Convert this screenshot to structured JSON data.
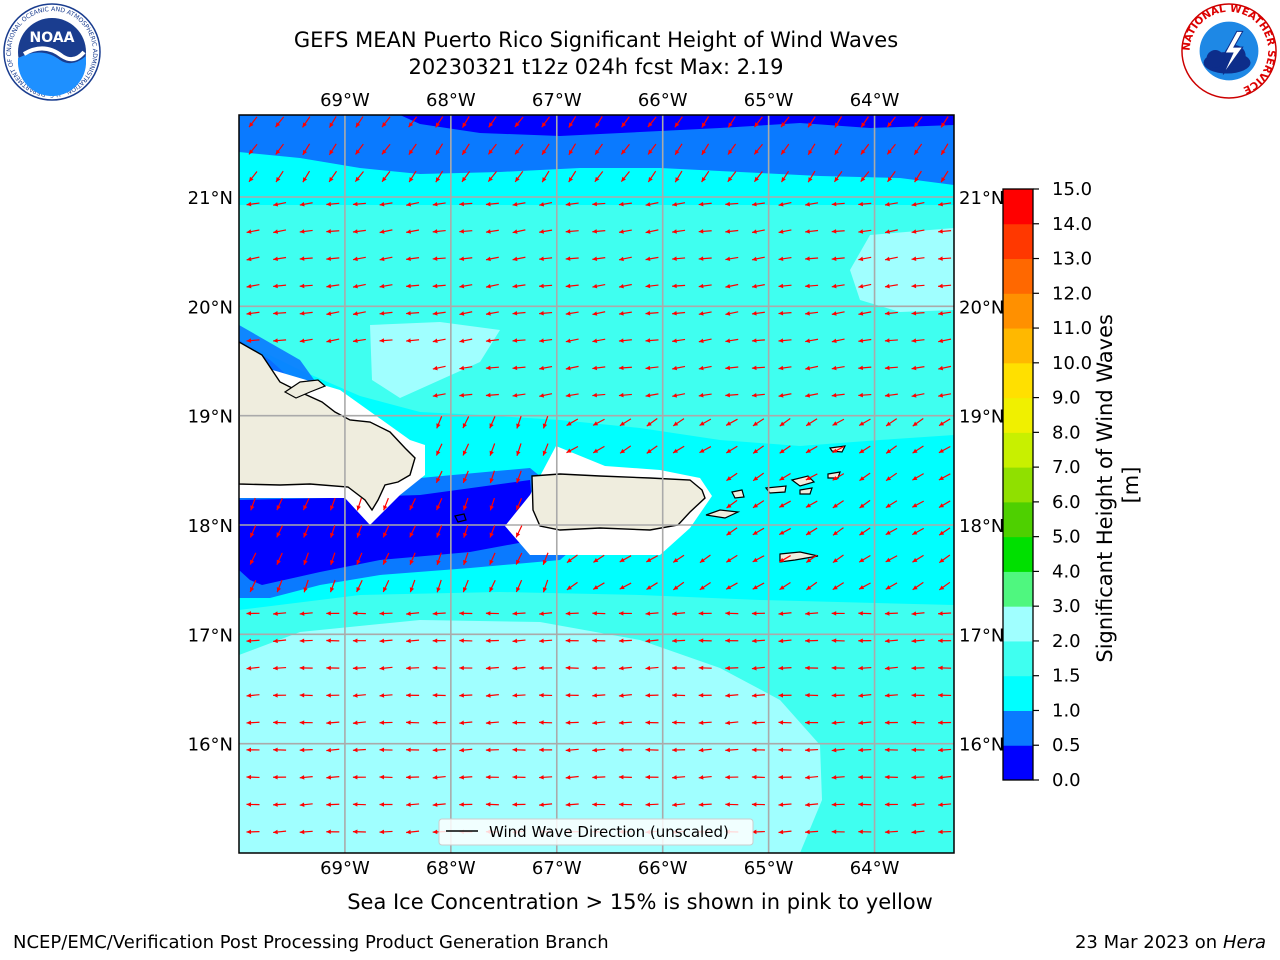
{
  "title": {
    "line1": "GEFS MEAN Puerto Rico Significant Height of Wind Waves",
    "line2": "20230321 t12z 024h fcst   Max: 2.19"
  },
  "map": {
    "lon_range": [
      -70.0,
      -63.25
    ],
    "lat_range": [
      15.0,
      21.75
    ],
    "lon_ticks": [
      {
        "value": -69,
        "label": "69°W"
      },
      {
        "value": -68,
        "label": "68°W"
      },
      {
        "value": -67,
        "label": "67°W"
      },
      {
        "value": -66,
        "label": "66°W"
      },
      {
        "value": -65,
        "label": "65°W"
      },
      {
        "value": -64,
        "label": "64°W"
      }
    ],
    "lat_ticks": [
      {
        "value": 21,
        "label": "21°N"
      },
      {
        "value": 20,
        "label": "20°N"
      },
      {
        "value": 19,
        "label": "19°N"
      },
      {
        "value": 18,
        "label": "18°N"
      },
      {
        "value": 17,
        "label": "17°N"
      },
      {
        "value": 16,
        "label": "16°N"
      }
    ],
    "gridlines": true,
    "legend_label": "Wind Wave Direction (unscaled)",
    "legend_placement": "bottom-center",
    "arrow_color": "#ff0000",
    "land_color": "#efedde",
    "ocean_color": "#00ffff"
  },
  "colorbar": {
    "label": "Significant Height of Wind Waves [m]",
    "ticks": [
      "0.0",
      "0.5",
      "1.0",
      "1.5",
      "2.0",
      "3.0",
      "4.0",
      "5.0",
      "6.0",
      "7.0",
      "8.0",
      "9.0",
      "10.0",
      "11.0",
      "12.0",
      "13.0",
      "14.0",
      "15.0"
    ],
    "colors": [
      "#0000ff",
      "#0a7aff",
      "#00ffff",
      "#3ffff0",
      "#a0ffff",
      "#4ff77f",
      "#00e000",
      "#4ed000",
      "#90e000",
      "#c8f000",
      "#f0f000",
      "#ffe000",
      "#ffb800",
      "#ff9000",
      "#ff6800",
      "#ff3800",
      "#ff0000"
    ]
  },
  "caption": "Sea Ice Concentration > 15% is shown in pink to yellow",
  "footer": {
    "left": "NCEP/EMC/Verification Post Processing Product Generation Branch",
    "right_prefix": "23 Mar 2023 on",
    "right_host": "Hera"
  },
  "logos": {
    "noaa": {
      "text": "NOAA",
      "ring_text": "NATIONAL OCEANIC AND ATMOSPHERIC ADMINISTRATION · U.S. DEPARTMENT OF COMMERCE"
    },
    "nws": {
      "ring_text": "NATIONAL WEATHER SERVICE"
    }
  }
}
